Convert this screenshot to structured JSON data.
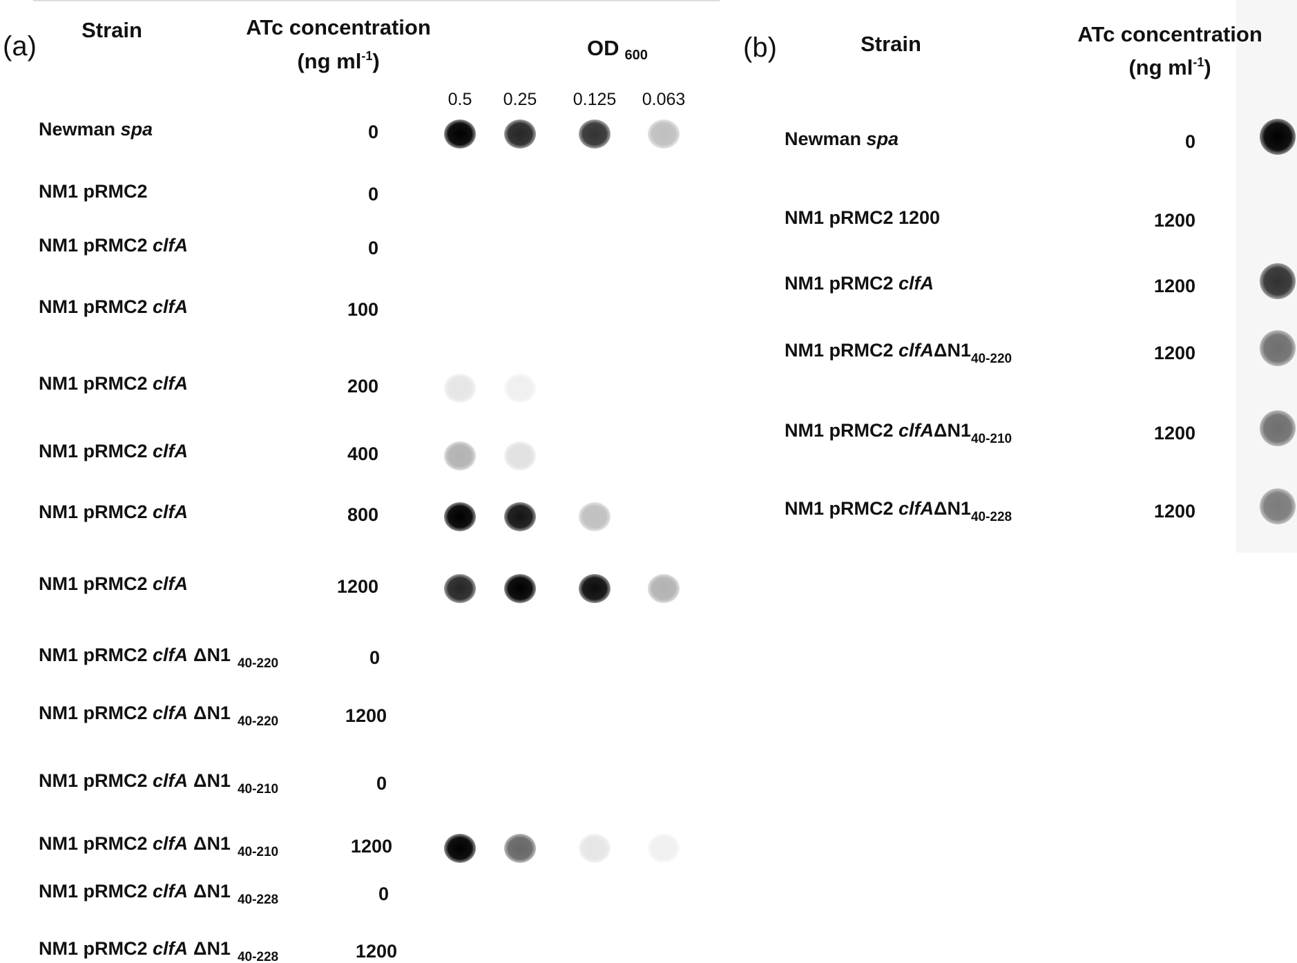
{
  "panel_a": {
    "label": "(a)",
    "strain_header": "Strain",
    "atc_header": "ATc concentration",
    "unit": {
      "open": "(ng ml",
      "sup": "-1",
      "close": ")"
    },
    "od": {
      "text": "OD",
      "sub": "600"
    },
    "dilutions": [
      "0.5",
      "0.25",
      "0.125",
      "0.063"
    ],
    "rows": [
      {
        "prefix": "Newman ",
        "gene": "spa",
        "atc": 0
      },
      {
        "prefix": "NM1 pRMC2",
        "atc": 0
      },
      {
        "prefix": "NM1 pRMC2 ",
        "gene": "clfA",
        "atc": 0
      },
      {
        "prefix": "NM1 pRMC2 ",
        "gene": "clfA",
        "atc": 100
      },
      {
        "prefix": "NM1 pRMC2 ",
        "gene": "clfA",
        "atc": 200
      },
      {
        "prefix": "NM1 pRMC2 ",
        "gene": "clfA",
        "atc": 400
      },
      {
        "prefix": "NM1 pRMC2 ",
        "gene": "clfA",
        "atc": 800
      },
      {
        "prefix": "NM1 pRMC2 ",
        "gene": "clfA",
        "atc": 1200
      },
      {
        "prefix": "NM1 pRMC2 ",
        "gene": "clfA",
        "deletion": "ΔN1",
        "range": "40-220",
        "atc": 0
      },
      {
        "prefix": "NM1 pRMC2 ",
        "gene": "clfA",
        "deletion": "ΔN1",
        "range": "40-220",
        "atc": 1200
      },
      {
        "prefix": "NM1 pRMC2 ",
        "gene": "clfA",
        "deletion": "ΔN1",
        "range": "40-210",
        "atc": 0
      },
      {
        "prefix": "NM1 pRMC2 ",
        "gene": "clfA",
        "deletion": "ΔN1",
        "range": "40-210",
        "atc": 1200
      },
      {
        "prefix": "NM1 pRMC2 ",
        "gene": "clfA",
        "deletion": "ΔN1",
        "range": "40-228",
        "atc": 0
      },
      {
        "prefix": "NM1 pRMC2 ",
        "gene": "clfA",
        "deletion": "ΔN1",
        "range": "40-228",
        "atc": 1200
      }
    ]
  },
  "panel_b": {
    "label": "(b)",
    "strain_header": "Strain",
    "atc_header": "ATc concentration",
    "unit": {
      "open": "(ng ml",
      "sup": "-1",
      "close": ")"
    },
    "rows": [
      {
        "prefix": "Newman ",
        "gene": "spa",
        "atc": 0
      },
      {
        "prefix": "NM1 pRMC2 1200",
        "atc": 1200
      },
      {
        "prefix": "NM1 pRMC2 ",
        "gene": "clfA",
        "atc": 1200
      },
      {
        "prefix": "NM1 pRMC2 ",
        "gene": "clfA",
        "deletion": "ΔN1",
        "range": "40-220",
        "atc": 1200
      },
      {
        "prefix": "NM1 pRMC2 ",
        "gene": "clfA",
        "deletion": "ΔN1",
        "range": "40-210",
        "atc": 1200
      },
      {
        "prefix": "NM1 pRMC2 ",
        "gene": "clfA",
        "deletion": "ΔN1",
        "range": "40-228",
        "atc": 1200
      }
    ]
  }
}
